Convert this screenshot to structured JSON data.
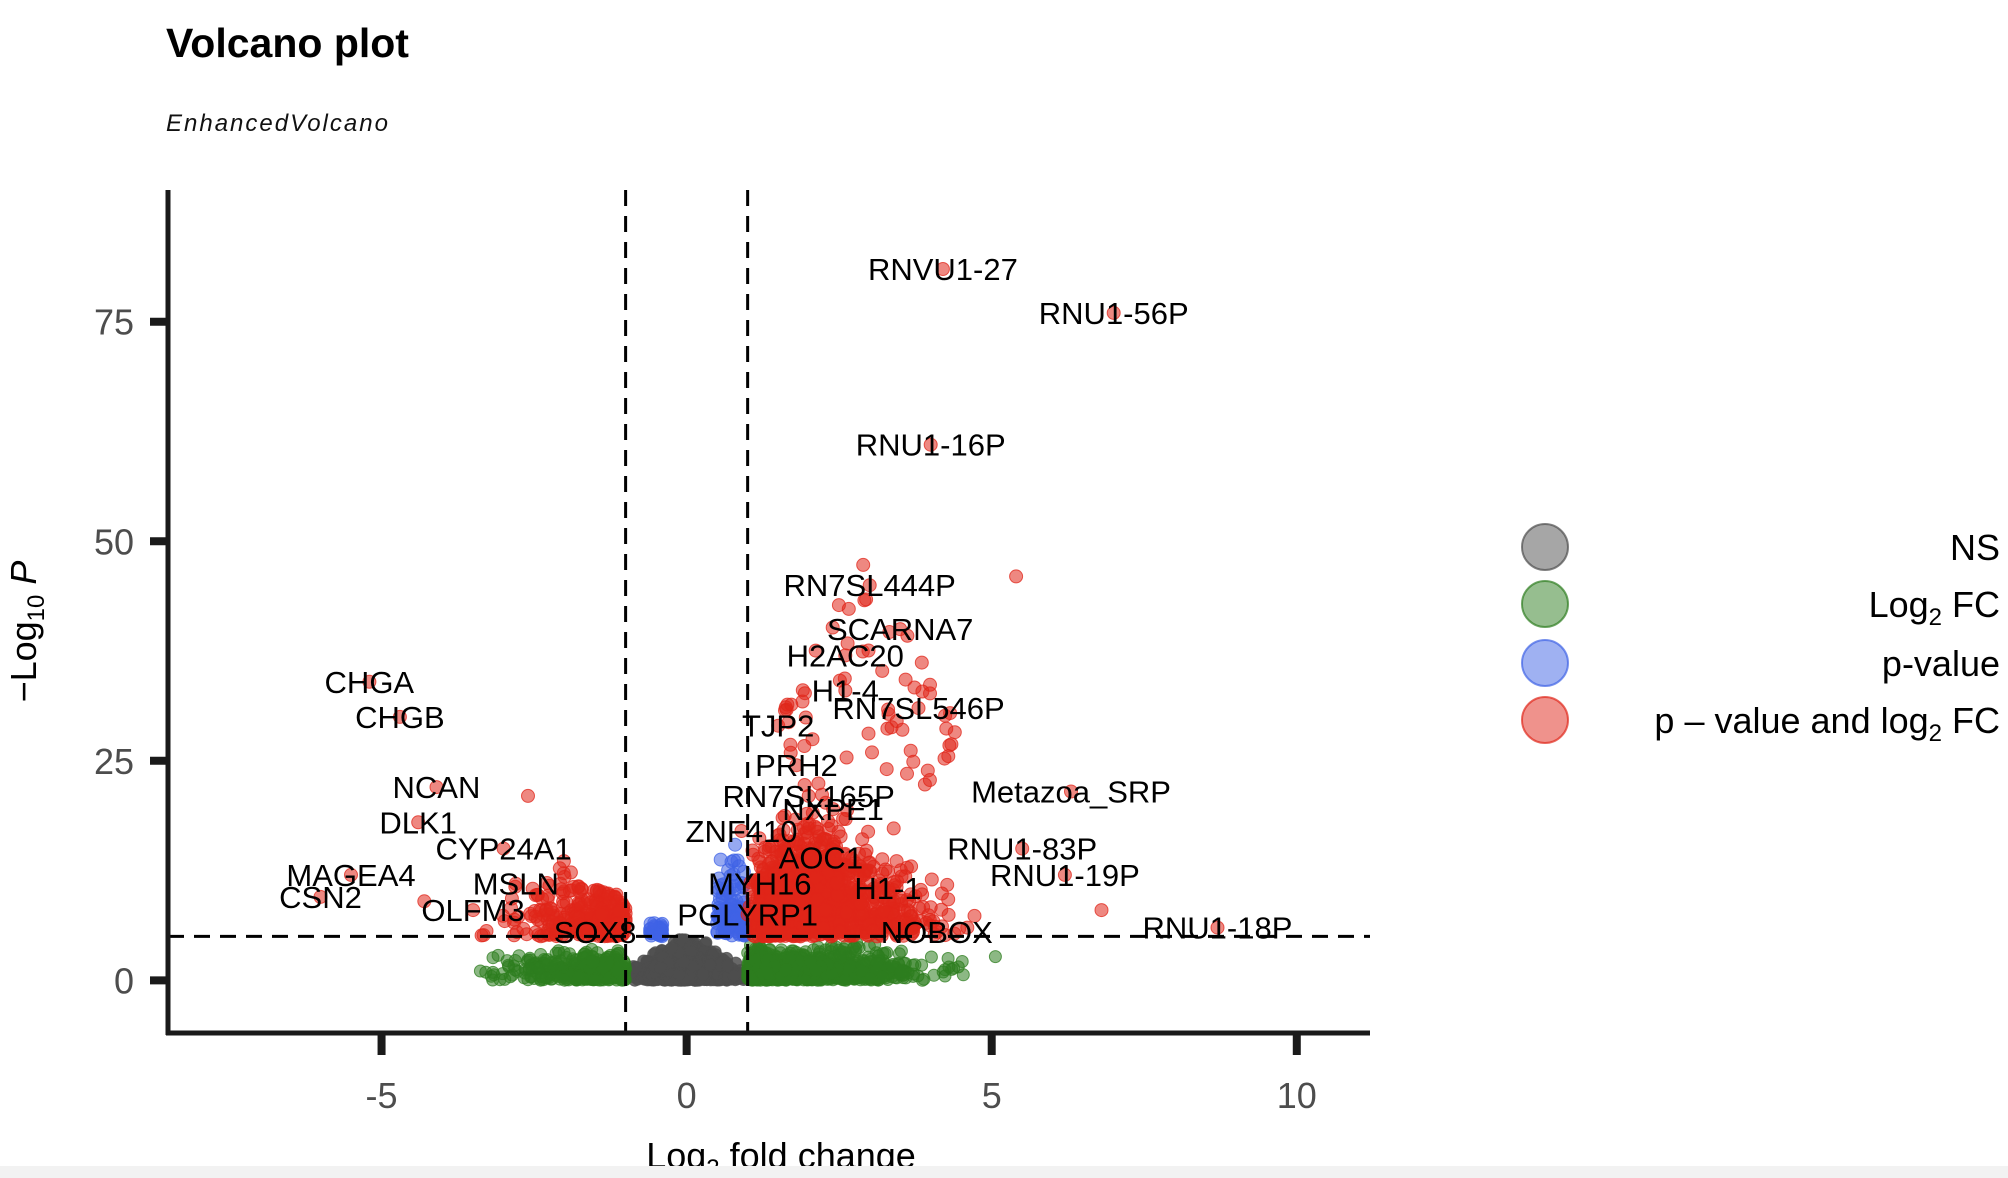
{
  "title": "Volcano plot",
  "subtitle": "EnhancedVolcano",
  "colors": {
    "ns": "#4d4d4d",
    "log2fc": "#2e7d1f",
    "pvalue": "#3f63e6",
    "both": "#e0261a",
    "axis": "#1a1a1a"
  },
  "chart_data": {
    "type": "scatter",
    "title": "Volcano plot",
    "subtitle": "EnhancedVolcano",
    "xlim": [
      -8.5,
      11.2
    ],
    "ylim": [
      -6,
      90
    ],
    "x_ticks": [
      -5,
      0,
      5,
      10
    ],
    "y_ticks": [
      0,
      25,
      50,
      75
    ],
    "x_tick_labels": [
      "-5",
      "0",
      "5",
      "10"
    ],
    "y_tick_labels": [
      "0",
      "25",
      "50",
      "75"
    ],
    "cutoffs": {
      "x": [
        -1,
        1
      ],
      "y": 5
    },
    "legend_position": "right",
    "legend": [
      {
        "key": "ns",
        "text": "NS"
      },
      {
        "key": "log2fc",
        "text": "Log₂ FC"
      },
      {
        "key": "pvalue",
        "text": "p-value"
      },
      {
        "key": "both",
        "text": "p – value and log₂ FC"
      }
    ],
    "labeled_points": [
      {
        "gene": "RNVU1-27",
        "x": 4.2,
        "y": 81
      },
      {
        "gene": "RNU1-56P",
        "x": 7.0,
        "y": 76
      },
      {
        "gene": "RNU1-16P",
        "x": 4.0,
        "y": 61
      },
      {
        "gene": "RN7SL444P",
        "x": 3.0,
        "y": 45
      },
      {
        "gene": "SCARNA7",
        "x": 3.5,
        "y": 40
      },
      {
        "gene": "H2AC20",
        "x": 2.6,
        "y": 37
      },
      {
        "gene": "H1-4",
        "x": 2.6,
        "y": 33
      },
      {
        "gene": "RN7SL546P",
        "x": 3.8,
        "y": 31
      },
      {
        "gene": "TJP2",
        "x": 1.5,
        "y": 29
      },
      {
        "gene": "PRH2",
        "x": 1.8,
        "y": 24.5
      },
      {
        "gene": "RN7SL165P",
        "x": 2.0,
        "y": 21
      },
      {
        "gene": "NXPE1",
        "x": 2.4,
        "y": 19.5
      },
      {
        "gene": "Metazoa_SRP",
        "x": 6.3,
        "y": 21.5
      },
      {
        "gene": "ZNF410",
        "x": 0.9,
        "y": 17
      },
      {
        "gene": "RNU1-83P",
        "x": 5.5,
        "y": 15
      },
      {
        "gene": "AOC1",
        "x": 2.2,
        "y": 14
      },
      {
        "gene": "RNU1-19P",
        "x": 6.2,
        "y": 12
      },
      {
        "gene": "MYH16",
        "x": 1.2,
        "y": 11
      },
      {
        "gene": "H1-1",
        "x": 3.3,
        "y": 10.5
      },
      {
        "gene": "PGLYRP1",
        "x": 1.0,
        "y": 7.5
      },
      {
        "gene": "NOBOX",
        "x": 4.1,
        "y": 5.5
      },
      {
        "gene": "RNU1-18P",
        "x": 8.7,
        "y": 6
      },
      {
        "gene": "SOX8",
        "x": -1.5,
        "y": 5.5
      },
      {
        "gene": "CHGA",
        "x": -5.2,
        "y": 34
      },
      {
        "gene": "CHGB",
        "x": -4.7,
        "y": 30
      },
      {
        "gene": "NCAN",
        "x": -4.1,
        "y": 22
      },
      {
        "gene": "DLK1",
        "x": -4.4,
        "y": 18
      },
      {
        "gene": "CYP24A1",
        "x": -3.0,
        "y": 15
      },
      {
        "gene": "MAGEA4",
        "x": -5.5,
        "y": 12
      },
      {
        "gene": "MSLN",
        "x": -2.8,
        "y": 11
      },
      {
        "gene": "CSN2",
        "x": -6.0,
        "y": 9.5
      },
      {
        "gene": "OLFM3",
        "x": -3.5,
        "y": 8
      }
    ]
  }
}
